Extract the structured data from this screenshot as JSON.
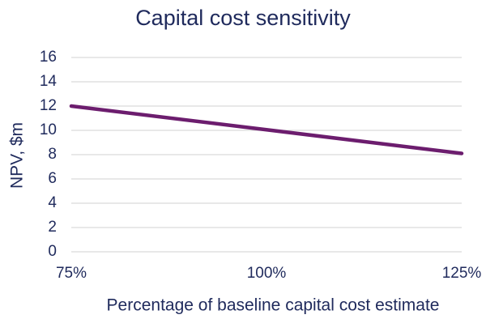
{
  "chart_data": {
    "type": "line",
    "title": "Capital cost sensitivity",
    "x_label": "Percentage of baseline capital cost estimate",
    "y_label": "NPV, $m",
    "x": [
      75,
      100,
      125
    ],
    "series": [
      {
        "color": "#6c1d6e",
        "values": [
          12,
          10.05,
          8.1
        ]
      }
    ],
    "xlim": [
      75,
      125
    ],
    "xticks": [
      {
        "value": 75,
        "label": "75%"
      },
      {
        "value": 100,
        "label": "100%"
      },
      {
        "value": 125,
        "label": "125%"
      }
    ],
    "ylim": [
      0,
      16
    ],
    "yticks": [
      0,
      2,
      4,
      6,
      8,
      10,
      12,
      14,
      16
    ],
    "grid": true
  }
}
